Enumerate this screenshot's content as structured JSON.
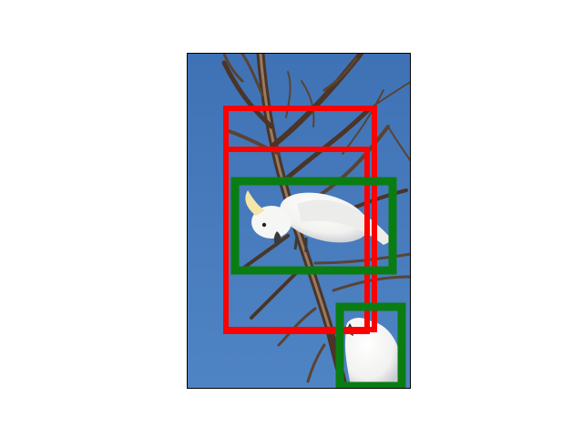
{
  "colors": {
    "sky_top": "#3f72b5",
    "sky_bottom": "#4f84c4",
    "branch_dark": "#4a3528",
    "branch_light": "#9a7a60",
    "bird_white": "#f4f4f2",
    "bird_shadow": "#c9ccd0",
    "beak": "#3a3a3a",
    "box_red": "#ff0000",
    "box_green": "#0a7d12"
  },
  "objects": [
    {
      "label": "cockatoo-perched",
      "box_color": "green"
    },
    {
      "label": "cockatoo-partial",
      "box_color": "green"
    }
  ]
}
